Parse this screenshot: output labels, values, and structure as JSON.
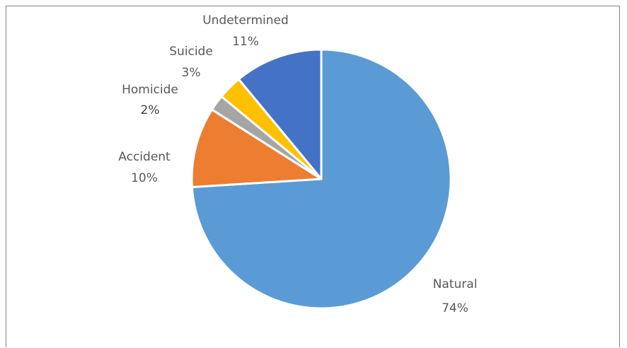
{
  "chart_data": {
    "type": "pie",
    "title": "",
    "start_angle_deg": 0,
    "direction": "clockwise",
    "slices": [
      {
        "label": "Natural",
        "value": 74,
        "pct_label": "74%",
        "color": "#5B9BD5"
      },
      {
        "label": "Accident",
        "value": 10,
        "pct_label": "10%",
        "color": "#ED7D31"
      },
      {
        "label": "Homicide",
        "value": 2,
        "pct_label": "2%",
        "color": "#A5A5A5"
      },
      {
        "label": "Suicide",
        "value": 3,
        "pct_label": "3%",
        "color": "#FFC000"
      },
      {
        "label": "Undetermined",
        "value": 11,
        "pct_label": "11%",
        "color": "#4472C4"
      }
    ],
    "legend": "none",
    "data_labels": "outside"
  }
}
